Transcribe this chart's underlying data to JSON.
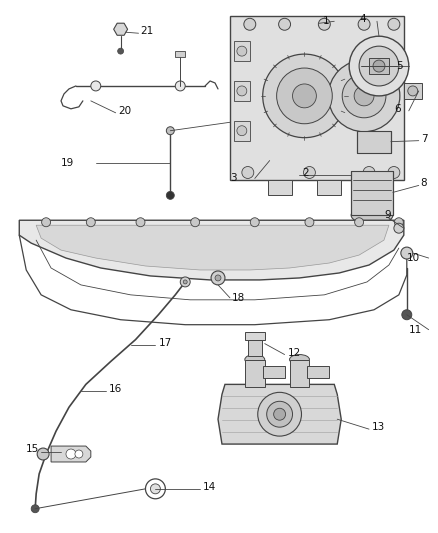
{
  "bg_color": "#ffffff",
  "line_color": "#444444",
  "label_color": "#111111",
  "fig_width": 4.38,
  "fig_height": 5.33,
  "dpi": 100
}
